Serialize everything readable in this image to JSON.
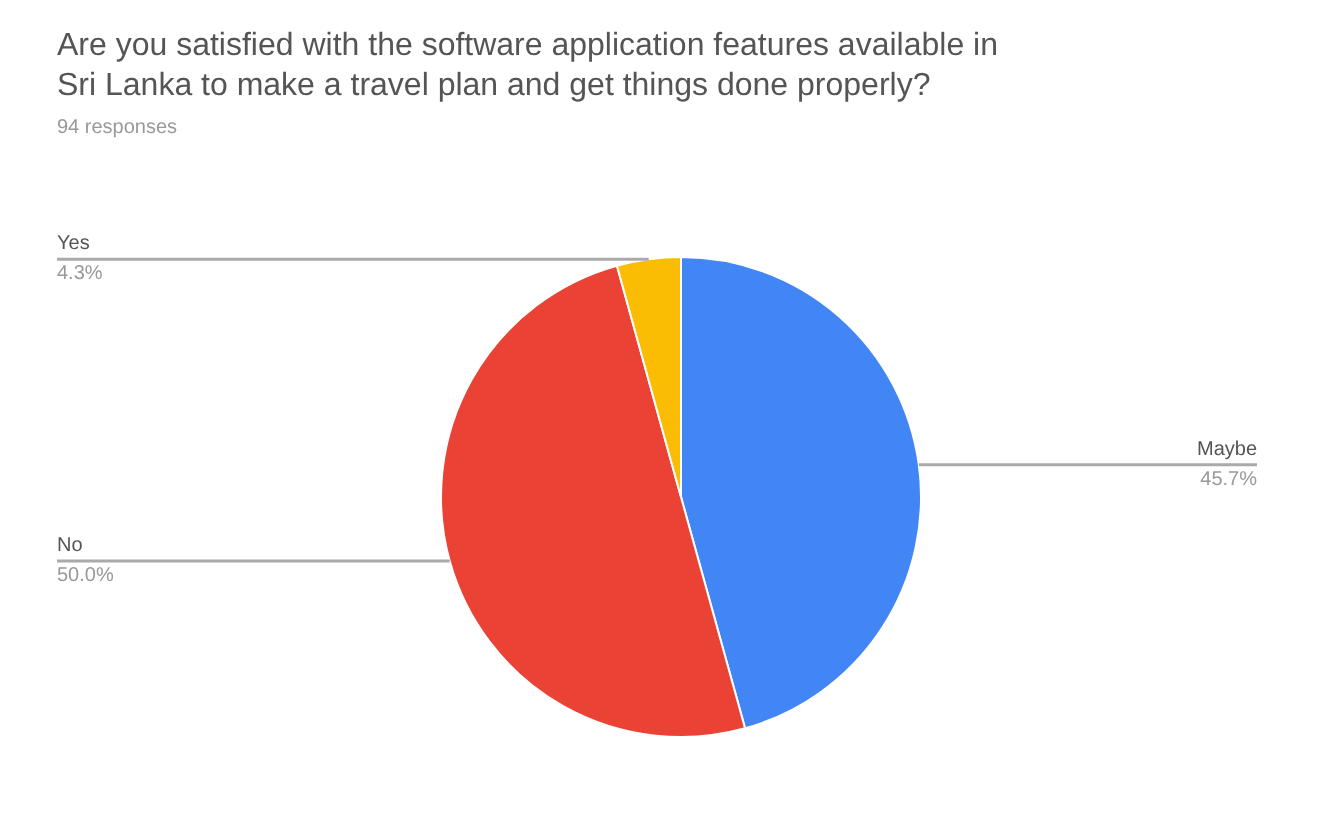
{
  "chart_data": {
    "type": "pie",
    "title": "Are you satisfied with the software application features available in Sri Lanka to make a travel plan and get things done properly?",
    "subtitle": "94 responses",
    "categories": [
      "Maybe",
      "No",
      "Yes"
    ],
    "values": [
      45.7,
      50.0,
      4.3
    ],
    "value_labels": [
      "45.7%",
      "50.0%",
      "4.3%"
    ],
    "colors": [
      "#4285f4",
      "#ea4335",
      "#fbbc04"
    ]
  }
}
